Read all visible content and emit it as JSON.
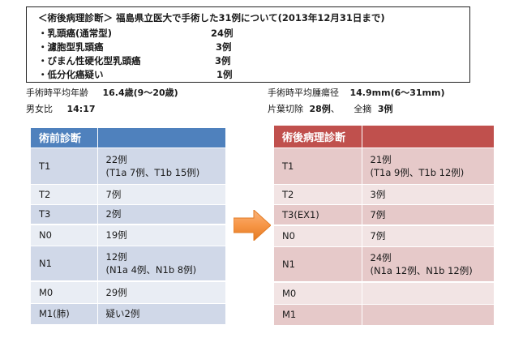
{
  "summary_box": {
    "title": "＜術後病理診断＞ 福島県立医大で手術した31例について(2013年12月31日まで)",
    "items": [
      {
        "label": "・乳頭癌(通常型)",
        "value": "24例"
      },
      {
        "label": "・濾胞型乳頭癌",
        "value": "3例"
      },
      {
        "label": "・びまん性硬化型乳頭癌",
        "value": "3例"
      },
      {
        "label": "・低分化癌疑い",
        "value": "1例"
      }
    ]
  },
  "stats": {
    "age_label": "手術時平均年齢",
    "age_value": "16.4歳(9～20歳)",
    "sex_label": "男女比",
    "sex_value": "14:17",
    "tumor_label": "手術時平均腫瘍径",
    "tumor_value": "14.9mm(6～31mm)",
    "surgery_lobe_label": "片葉切除",
    "surgery_lobe_value": "28例",
    "surgery_total_label": "全摘",
    "surgery_total_value": "3例",
    "separator": "、"
  },
  "preop_table": {
    "header": "術前診断",
    "rows": [
      {
        "stage": "T1",
        "value": "22例",
        "detail": "(T1a 7例、T1b 15例)"
      },
      {
        "stage": "T2",
        "value": "7例",
        "detail": ""
      },
      {
        "stage": "T3",
        "value": "2例",
        "detail": ""
      },
      {
        "stage": "N0",
        "value": "19例",
        "detail": ""
      },
      {
        "stage": "N1",
        "value": "12例",
        "detail": "(N1a 4例、N1b 8例)"
      },
      {
        "stage": "M0",
        "value": "29例",
        "detail": ""
      },
      {
        "stage": "M1(肺)",
        "value": "疑い2例",
        "detail": ""
      }
    ]
  },
  "postop_table": {
    "header": "術後病理診断",
    "rows": [
      {
        "stage": "T1",
        "value": "21例",
        "detail": "(T1a 9例、T1b 12例)"
      },
      {
        "stage": "T2",
        "value": "3例",
        "detail": ""
      },
      {
        "stage": "T3(EX1)",
        "value": "7例",
        "detail": ""
      },
      {
        "stage": "N0",
        "value": "7例",
        "detail": ""
      },
      {
        "stage": "N1",
        "value": "24例",
        "detail": "(N1a 12例、N1b 12例)"
      },
      {
        "stage": "M0",
        "value": "",
        "detail": ""
      },
      {
        "stage": "M1",
        "value": "",
        "detail": ""
      }
    ]
  },
  "colors": {
    "preop_header": "#4f81bd",
    "postop_header": "#c0504d",
    "arrow": "#f79646"
  }
}
